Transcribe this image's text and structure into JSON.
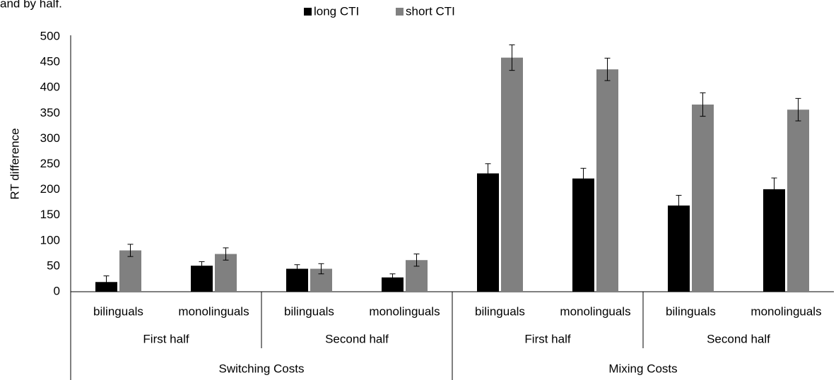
{
  "chart_data": {
    "type": "bar",
    "annotation": "and by half.",
    "y_label": "RT difference",
    "categories": [
      "bilinguals",
      "monolinguals",
      "bilinguals",
      "monolinguals",
      "bilinguals",
      "monolinguals",
      "bilinguals",
      "monolinguals"
    ],
    "subgroups": [
      "First half",
      "Second half",
      "First half",
      "Second half"
    ],
    "groups": [
      "Switching Costs",
      "Mixing Costs"
    ],
    "series": [
      {
        "name": "long CTI",
        "color": "#000000",
        "values": [
          19,
          51,
          45,
          28,
          232,
          222,
          169,
          201
        ],
        "errors": [
          12,
          8,
          8,
          7,
          19,
          20,
          20,
          22
        ]
      },
      {
        "name": "short CTI",
        "color": "#808080",
        "values": [
          81,
          74,
          45,
          62,
          459,
          436,
          367,
          357
        ],
        "errors": [
          12,
          12,
          10,
          12,
          25,
          22,
          23,
          22
        ]
      }
    ],
    "ylim": [
      0,
      500
    ],
    "yticks": [
      0,
      50,
      100,
      150,
      200,
      250,
      300,
      350,
      400,
      450,
      500
    ],
    "grid": false,
    "legend": "top",
    "error_color": "#555555"
  }
}
